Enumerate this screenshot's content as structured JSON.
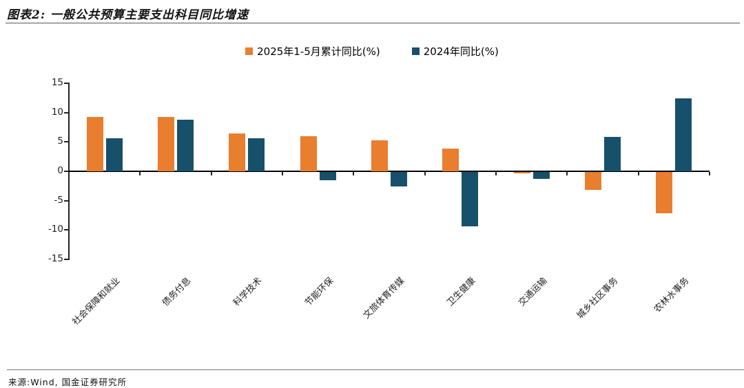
{
  "header": {
    "title": "图表2: 一般公共预算主要支出科目同比增速"
  },
  "footer": {
    "source": "来源:Wind, 国金证券研究所"
  },
  "colors": {
    "series_2025": "#E87E2E",
    "series_2024": "#17506B",
    "axis": "#000000"
  },
  "chart_data": {
    "type": "bar",
    "title": "一般公共预算主要支出科目同比增速",
    "categories": [
      "社会保障和就业",
      "债务付息",
      "科学技术",
      "节能环保",
      "文旅体育传媒",
      "卫生健康",
      "交通运输",
      "城乡社区事务",
      "农林水事务"
    ],
    "series": [
      {
        "name": "2025年1-5月累计同比(%)",
        "color": "#E87E2E",
        "values": [
          9.2,
          9.2,
          6.5,
          6.0,
          5.3,
          3.9,
          -0.2,
          -3.1,
          -7.0
        ]
      },
      {
        "name": "2024年同比(%)",
        "color": "#17506B",
        "values": [
          5.6,
          8.8,
          5.6,
          -1.4,
          -2.5,
          -9.3,
          -1.2,
          5.9,
          12.4
        ]
      }
    ],
    "xlabel": "",
    "ylabel": "",
    "ylim": [
      -15,
      15
    ],
    "yticks": [
      15,
      10,
      5,
      0,
      -5,
      -10,
      -15
    ],
    "grid": false,
    "legend_position": "top-center"
  }
}
